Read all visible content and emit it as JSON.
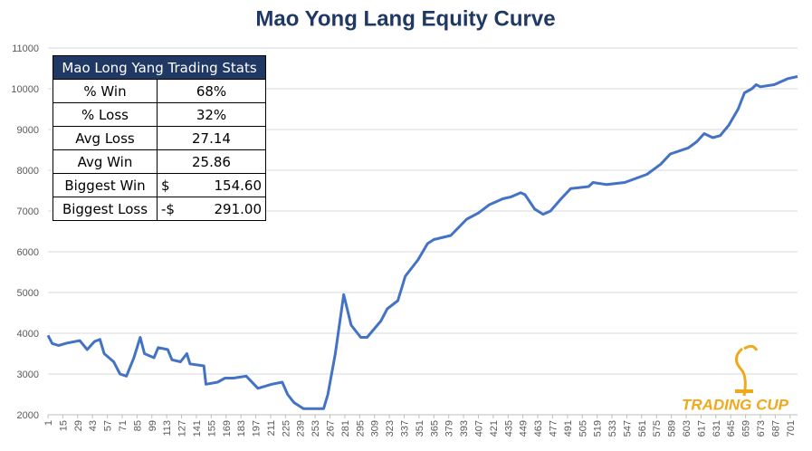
{
  "chart_data": {
    "type": "line",
    "title": "Mao Yong Lang Equity Curve",
    "x": [
      1,
      5,
      11,
      19,
      31,
      38,
      45,
      50,
      54,
      63,
      69,
      75,
      82,
      88,
      92,
      101,
      105,
      114,
      118,
      126,
      132,
      135,
      148,
      150,
      161,
      168,
      176,
      188,
      199,
      212,
      222,
      227,
      233,
      242,
      261,
      265,
      272,
      280,
      287,
      296,
      302,
      315,
      321,
      331,
      338,
      350,
      359,
      365,
      381,
      396,
      407,
      417,
      430,
      438,
      447,
      451,
      460,
      468,
      475,
      485,
      494,
      511,
      515,
      528,
      545,
      566,
      579,
      588,
      605,
      613,
      620,
      628,
      635,
      643,
      652,
      658,
      665,
      669,
      673,
      686,
      699,
      708
    ],
    "values": [
      3950,
      3750,
      3700,
      3760,
      3820,
      3600,
      3800,
      3850,
      3500,
      3300,
      3000,
      2950,
      3400,
      3900,
      3500,
      3400,
      3650,
      3600,
      3350,
      3300,
      3500,
      3250,
      3200,
      2750,
      2800,
      2900,
      2900,
      2950,
      2650,
      2750,
      2800,
      2500,
      2300,
      2150,
      2150,
      2500,
      3500,
      4950,
      4200,
      3900,
      3900,
      4300,
      4600,
      4800,
      5400,
      5800,
      6200,
      6300,
      6400,
      6800,
      6950,
      7150,
      7300,
      7350,
      7450,
      7400,
      7050,
      6920,
      7000,
      7300,
      7550,
      7600,
      7700,
      7650,
      7700,
      7900,
      8150,
      8400,
      8550,
      8700,
      8900,
      8800,
      8850,
      9100,
      9500,
      9900,
      10000,
      10100,
      10050,
      10100,
      10250,
      10300
    ],
    "color": "#4472c4",
    "xlim": [
      1,
      708
    ],
    "xticks": [
      1,
      15,
      29,
      43,
      57,
      71,
      85,
      99,
      113,
      127,
      141,
      155,
      169,
      183,
      197,
      211,
      225,
      239,
      253,
      267,
      281,
      295,
      309,
      323,
      337,
      351,
      365,
      379,
      393,
      407,
      421,
      435,
      449,
      463,
      477,
      491,
      505,
      519,
      533,
      547,
      561,
      575,
      589,
      603,
      617,
      631,
      645,
      659,
      673,
      687,
      701
    ],
    "ylim": [
      2000,
      11000
    ],
    "yticks": [
      2000,
      3000,
      4000,
      5000,
      6000,
      7000,
      8000,
      9000,
      10000,
      11000
    ],
    "grid": true
  },
  "table": {
    "title": "Mao Long Yang Trading Stats",
    "rows": [
      [
        "% Win",
        "68%"
      ],
      [
        "% Loss",
        "32%"
      ],
      [
        "Avg Loss",
        "27.14"
      ],
      [
        "Avg Win",
        "25.86"
      ],
      [
        "Biggest Win",
        "$",
        "154.60"
      ],
      [
        "Biggest Loss",
        "-$",
        "291.00"
      ]
    ]
  },
  "logo_text": "TRADING CUP"
}
